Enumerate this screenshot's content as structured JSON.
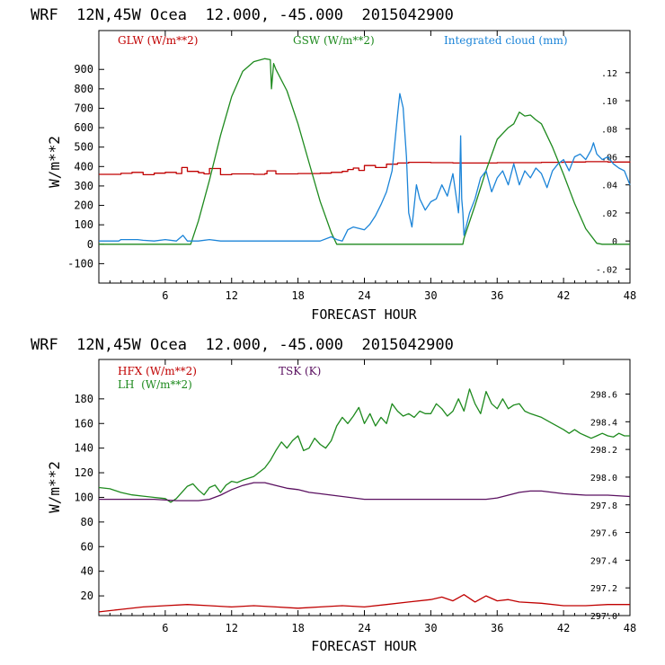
{
  "panels": [
    {
      "header": "WRF  12N,45W Ocea  12.000, -45.000  2015042900",
      "xlabel": "FORECAST HOUR",
      "ylabel": "W/m**2",
      "legend": [
        {
          "label": "GLW (W/m**2)",
          "color": "#c00000"
        },
        {
          "label": "GSW (W/m**2)",
          "color": "#1e8a1e"
        },
        {
          "label": "Integrated cloud (mm)",
          "color": "#1b84d8"
        }
      ]
    },
    {
      "header": "WRF  12N,45W Ocea  12.000, -45.000  2015042900",
      "xlabel": "FORECAST HOUR",
      "ylabel": "W/m**2",
      "legend": [
        {
          "label": "HFX (W/m**2)",
          "color": "#c00000"
        },
        {
          "label": "LH  (W/m**2)",
          "color": "#1e8a1e"
        },
        {
          "label": "TSK (K)",
          "color": "#5a1060"
        }
      ]
    }
  ],
  "chart_data": [
    {
      "type": "line",
      "title": "WRF  12N,45W Ocea  12.000, -45.000  2015042900",
      "xlabel": "FORECAST HOUR",
      "ylabel": "W/m**2",
      "xlim": [
        0,
        48
      ],
      "ylim": [
        -200,
        1100
      ],
      "xticks": [
        6,
        12,
        18,
        24,
        30,
        36,
        42,
        48
      ],
      "yticks": [
        -100,
        0,
        100,
        200,
        300,
        400,
        500,
        600,
        700,
        800,
        900
      ],
      "y2lim": [
        -0.03,
        0.15
      ],
      "y2ticks": [
        -0.02,
        0,
        0.02,
        0.04,
        0.06,
        0.08,
        0.1,
        0.12
      ],
      "y2ticklabels": [
        "-.02",
        "0",
        ".02",
        ".04",
        ".06",
        ".08",
        ".10",
        ".12"
      ],
      "series": [
        {
          "name": "GLW (W/m**2)",
          "axis": "left",
          "color": "#c00000",
          "step": true,
          "x": [
            0,
            2,
            3,
            4,
            5,
            6,
            7,
            7.5,
            8,
            9,
            9.5,
            10,
            11,
            12,
            14,
            15,
            15.2,
            16,
            18,
            20,
            21,
            22,
            22.5,
            23,
            23.5,
            24,
            25,
            26,
            27,
            28,
            30,
            32,
            36,
            40,
            42,
            44,
            46,
            48
          ],
          "y": [
            360,
            365,
            370,
            358,
            366,
            370,
            364,
            395,
            375,
            368,
            362,
            390,
            358,
            362,
            360,
            363,
            378,
            362,
            364,
            366,
            370,
            375,
            385,
            392,
            380,
            405,
            395,
            412,
            418,
            422,
            420,
            418,
            420,
            422,
            423,
            425,
            423,
            422
          ]
        },
        {
          "name": "GSW (W/m**2)",
          "axis": "left",
          "color": "#1e8a1e",
          "x": [
            0,
            8.3,
            9,
            10,
            11,
            12,
            13,
            14,
            15,
            15.5,
            15.6,
            15.8,
            16,
            17,
            18,
            19,
            20,
            21,
            21.5,
            30,
            32.9,
            33,
            34,
            35,
            36,
            37,
            37.5,
            38,
            38.5,
            39,
            39.5,
            40,
            41,
            42,
            43,
            44,
            45,
            45.5,
            48
          ],
          "y": [
            0,
            0,
            120,
            330,
            560,
            760,
            890,
            940,
            955,
            950,
            800,
            930,
            900,
            790,
            620,
            420,
            220,
            60,
            0,
            0,
            0,
            30,
            200,
            380,
            540,
            600,
            620,
            680,
            660,
            665,
            640,
            620,
            500,
            360,
            210,
            80,
            5,
            0,
            0
          ]
        },
        {
          "name": "Integrated cloud (mm)",
          "axis": "right",
          "color": "#1b84d8",
          "x": [
            0,
            1.8,
            2,
            3.5,
            4,
            5,
            6,
            7,
            7.6,
            8,
            9,
            10,
            11,
            12,
            13,
            14,
            15,
            16,
            17,
            18,
            19,
            20,
            21,
            21.5,
            22,
            22.5,
            23,
            24,
            24.5,
            25,
            25.5,
            26,
            26.5,
            27,
            27.2,
            27.5,
            27.8,
            28,
            28.3,
            28.7,
            29,
            29.5,
            30,
            30.5,
            31,
            31.5,
            32,
            32.5,
            32.6,
            32.7,
            32.8,
            32.9,
            33,
            33.5,
            34,
            34.5,
            35,
            35.5,
            36,
            36.5,
            37,
            37.5,
            38,
            38.5,
            39,
            39.5,
            40,
            40.5,
            41,
            41.5,
            42,
            42.5,
            43,
            43.5,
            44,
            44.5,
            44.7,
            45,
            45.5,
            46,
            46.5,
            47,
            47.5,
            48
          ],
          "y": [
            0,
            0,
            0.001,
            0.001,
            0.0005,
            0,
            0.001,
            0,
            0.004,
            0,
            0,
            0.001,
            0,
            0,
            0,
            0,
            0,
            0,
            0,
            0,
            0,
            0,
            0.003,
            0.001,
            0,
            0.008,
            0.01,
            0.008,
            0.012,
            0.018,
            0.026,
            0.035,
            0.05,
            0.09,
            0.105,
            0.095,
            0.06,
            0.02,
            0.01,
            0.04,
            0.03,
            0.022,
            0.028,
            0.03,
            0.04,
            0.032,
            0.048,
            0.02,
            0.035,
            0.075,
            0.03,
            0.02,
            0.004,
            0.02,
            0.03,
            0.045,
            0.05,
            0.035,
            0.045,
            0.05,
            0.04,
            0.055,
            0.04,
            0.05,
            0.045,
            0.052,
            0.048,
            0.038,
            0.05,
            0.055,
            0.058,
            0.05,
            0.06,
            0.062,
            0.058,
            0.065,
            0.07,
            0.062,
            0.058,
            0.06,
            0.055,
            0.052,
            0.05,
            0.04
          ]
        }
      ]
    },
    {
      "type": "line",
      "title": "WRF  12N,45W Ocea  12.000, -45.000  2015042900",
      "xlabel": "FORECAST HOUR",
      "ylabel": "W/m**2",
      "xlim": [
        0,
        48
      ],
      "ylim": [
        4,
        212
      ],
      "xticks": [
        6,
        12,
        18,
        24,
        30,
        36,
        42,
        48
      ],
      "yticks": [
        20,
        40,
        60,
        80,
        100,
        120,
        140,
        160,
        180
      ],
      "y2lim": [
        297.0,
        298.85
      ],
      "y2ticks": [
        297.0,
        297.2,
        297.4,
        297.6,
        297.8,
        298.0,
        298.2,
        298.4,
        298.6
      ],
      "y2ticklabels": [
        "297.0",
        "297.2",
        "297.4",
        "297.6",
        "297.8",
        "298.0",
        "298.2",
        "298.4",
        "298.6"
      ],
      "series": [
        {
          "name": "HFX (W/m**2)",
          "axis": "left",
          "color": "#c00000",
          "x": [
            0,
            2,
            4,
            6,
            8,
            10,
            12,
            14,
            16,
            18,
            20,
            22,
            24,
            26,
            28,
            30,
            31,
            32,
            33,
            34,
            35,
            36,
            37,
            38,
            40,
            42,
            44,
            46,
            48
          ],
          "y": [
            7,
            9,
            11,
            12,
            13,
            12,
            11,
            12,
            11,
            10,
            11,
            12,
            11,
            13,
            15,
            17,
            19,
            16,
            21,
            15,
            20,
            16,
            17,
            15,
            14,
            12,
            12,
            13,
            13
          ]
        },
        {
          "name": "LH  (W/m**2)",
          "axis": "left",
          "color": "#1e8a1e",
          "x": [
            0,
            1,
            2,
            3,
            4,
            5,
            6,
            6.5,
            7,
            8,
            8.5,
            9,
            9.5,
            10,
            10.5,
            11,
            11.5,
            12,
            12.5,
            13,
            14,
            15,
            15.5,
            16,
            16.5,
            17,
            17.5,
            18,
            18.5,
            19,
            19.5,
            20,
            20.5,
            21,
            21.5,
            22,
            22.5,
            23,
            23.5,
            24,
            24.5,
            25,
            25.5,
            26,
            26.5,
            27,
            27.5,
            28,
            28.5,
            29,
            29.5,
            30,
            30.5,
            31,
            31.5,
            32,
            32.5,
            33,
            33.5,
            34,
            34.5,
            35,
            35.5,
            36,
            36.5,
            37,
            37.5,
            38,
            38.5,
            39,
            40,
            41,
            42,
            42.5,
            43,
            43.5,
            44,
            44.5,
            45,
            45.5,
            46,
            46.5,
            47,
            47.5,
            48
          ],
          "y": [
            108,
            107,
            104,
            102,
            101,
            100,
            99,
            96,
            99,
            109,
            111,
            106,
            102,
            108,
            110,
            104,
            110,
            113,
            112,
            114,
            117,
            124,
            130,
            138,
            145,
            140,
            146,
            150,
            138,
            140,
            148,
            143,
            140,
            146,
            158,
            165,
            160,
            166,
            173,
            160,
            168,
            158,
            165,
            160,
            176,
            170,
            166,
            168,
            165,
            170,
            168,
            168,
            176,
            172,
            166,
            170,
            180,
            170,
            188,
            176,
            168,
            186,
            176,
            172,
            180,
            172,
            175,
            176,
            170,
            168,
            165,
            160,
            155,
            152,
            155,
            152,
            150,
            148,
            150,
            152,
            150,
            149,
            152,
            150,
            150
          ]
        },
        {
          "name": "TSK (K)",
          "axis": "right",
          "color": "#5a1060",
          "x": [
            0,
            3,
            5,
            7,
            9,
            10,
            11,
            12,
            13,
            14,
            15,
            16,
            17,
            18,
            19,
            20,
            22,
            24,
            26,
            28,
            30,
            32,
            34,
            35,
            36,
            37,
            38,
            39,
            40,
            41,
            42,
            44,
            46,
            48
          ],
          "y": [
            297.84,
            297.84,
            297.84,
            297.83,
            297.83,
            297.84,
            297.87,
            297.91,
            297.94,
            297.96,
            297.96,
            297.94,
            297.92,
            297.91,
            297.89,
            297.88,
            297.86,
            297.84,
            297.84,
            297.84,
            297.84,
            297.84,
            297.84,
            297.84,
            297.85,
            297.87,
            297.89,
            297.9,
            297.9,
            297.89,
            297.88,
            297.87,
            297.87,
            297.86
          ]
        }
      ]
    }
  ]
}
